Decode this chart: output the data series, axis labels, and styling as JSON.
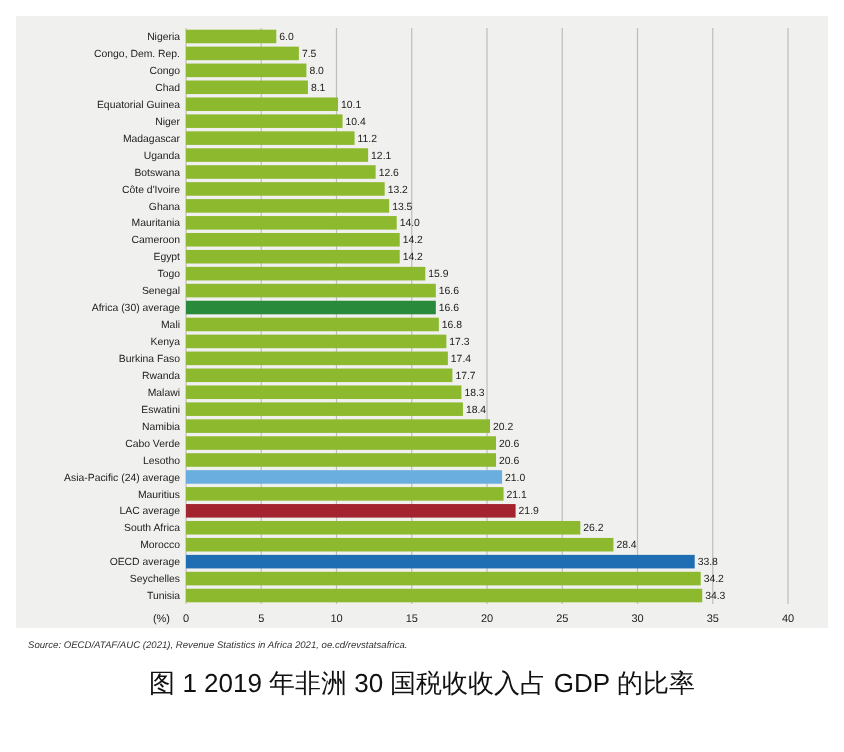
{
  "chart_data": {
    "type": "bar",
    "orientation": "horizontal",
    "title": "图 1 2019 年非洲 30 国税收收入占 GDP 的比率",
    "xlabel": "(%)",
    "categories": [
      "Nigeria",
      "Congo, Dem. Rep.",
      "Congo",
      "Chad",
      "Equatorial Guinea",
      "Niger",
      "Madagascar",
      "Uganda",
      "Botswana",
      "Côte d'Ivoire",
      "Ghana",
      "Mauritania",
      "Cameroon",
      "Egypt",
      "Togo",
      "Senegal",
      "Africa (30) average",
      "Mali",
      "Kenya",
      "Burkina Faso",
      "Rwanda",
      "Malawi",
      "Eswatini",
      "Namibia",
      "Cabo Verde",
      "Lesotho",
      "Asia-Pacific (24) average",
      "Mauritius",
      "LAC average",
      "South Africa",
      "Morocco",
      "OECD average",
      "Seychelles",
      "Tunisia"
    ],
    "values": [
      6.0,
      7.5,
      8.0,
      8.1,
      10.1,
      10.4,
      11.2,
      12.1,
      12.6,
      13.2,
      13.5,
      14.0,
      14.2,
      14.2,
      15.9,
      16.6,
      16.6,
      16.8,
      17.3,
      17.4,
      17.7,
      18.3,
      18.4,
      20.2,
      20.6,
      20.6,
      21.0,
      21.1,
      21.9,
      26.2,
      28.4,
      33.8,
      34.2,
      34.3
    ],
    "value_labels": [
      "6.0",
      "7.5",
      "8.0",
      "8.1",
      "10.1",
      "10.4",
      "11.2",
      "12.1",
      "12.6",
      "13.2",
      "13.5",
      "14.0",
      "14.2",
      "14.2",
      "15.9",
      "16.6",
      "16.6",
      "16.8",
      "17.3",
      "17.4",
      "17.7",
      "18.3",
      "18.4",
      "20.2",
      "20.6",
      "20.6",
      "21.0",
      "21.1",
      "21.9",
      "26.2",
      "28.4",
      "33.8",
      "34.2",
      "34.3"
    ],
    "colors": [
      "#8cb92d",
      "#8cb92d",
      "#8cb92d",
      "#8cb92d",
      "#8cb92d",
      "#8cb92d",
      "#8cb92d",
      "#8cb92d",
      "#8cb92d",
      "#8cb92d",
      "#8cb92d",
      "#8cb92d",
      "#8cb92d",
      "#8cb92d",
      "#8cb92d",
      "#8cb92d",
      "#2a8a3c",
      "#8cb92d",
      "#8cb92d",
      "#8cb92d",
      "#8cb92d",
      "#8cb92d",
      "#8cb92d",
      "#8cb92d",
      "#8cb92d",
      "#8cb92d",
      "#6aaee0",
      "#8cb92d",
      "#a3232f",
      "#8cb92d",
      "#8cb92d",
      "#1f6db2",
      "#8cb92d",
      "#8cb92d"
    ],
    "xlim": [
      0,
      40
    ],
    "xticks": [
      0,
      5,
      10,
      15,
      20,
      25,
      30,
      35,
      40
    ],
    "grid": "x",
    "annotations": [
      "Source: OECD/ATAF/AUC (2021), Revenue Statistics in Africa 2021, oe.cd/revstatsafrica."
    ]
  }
}
